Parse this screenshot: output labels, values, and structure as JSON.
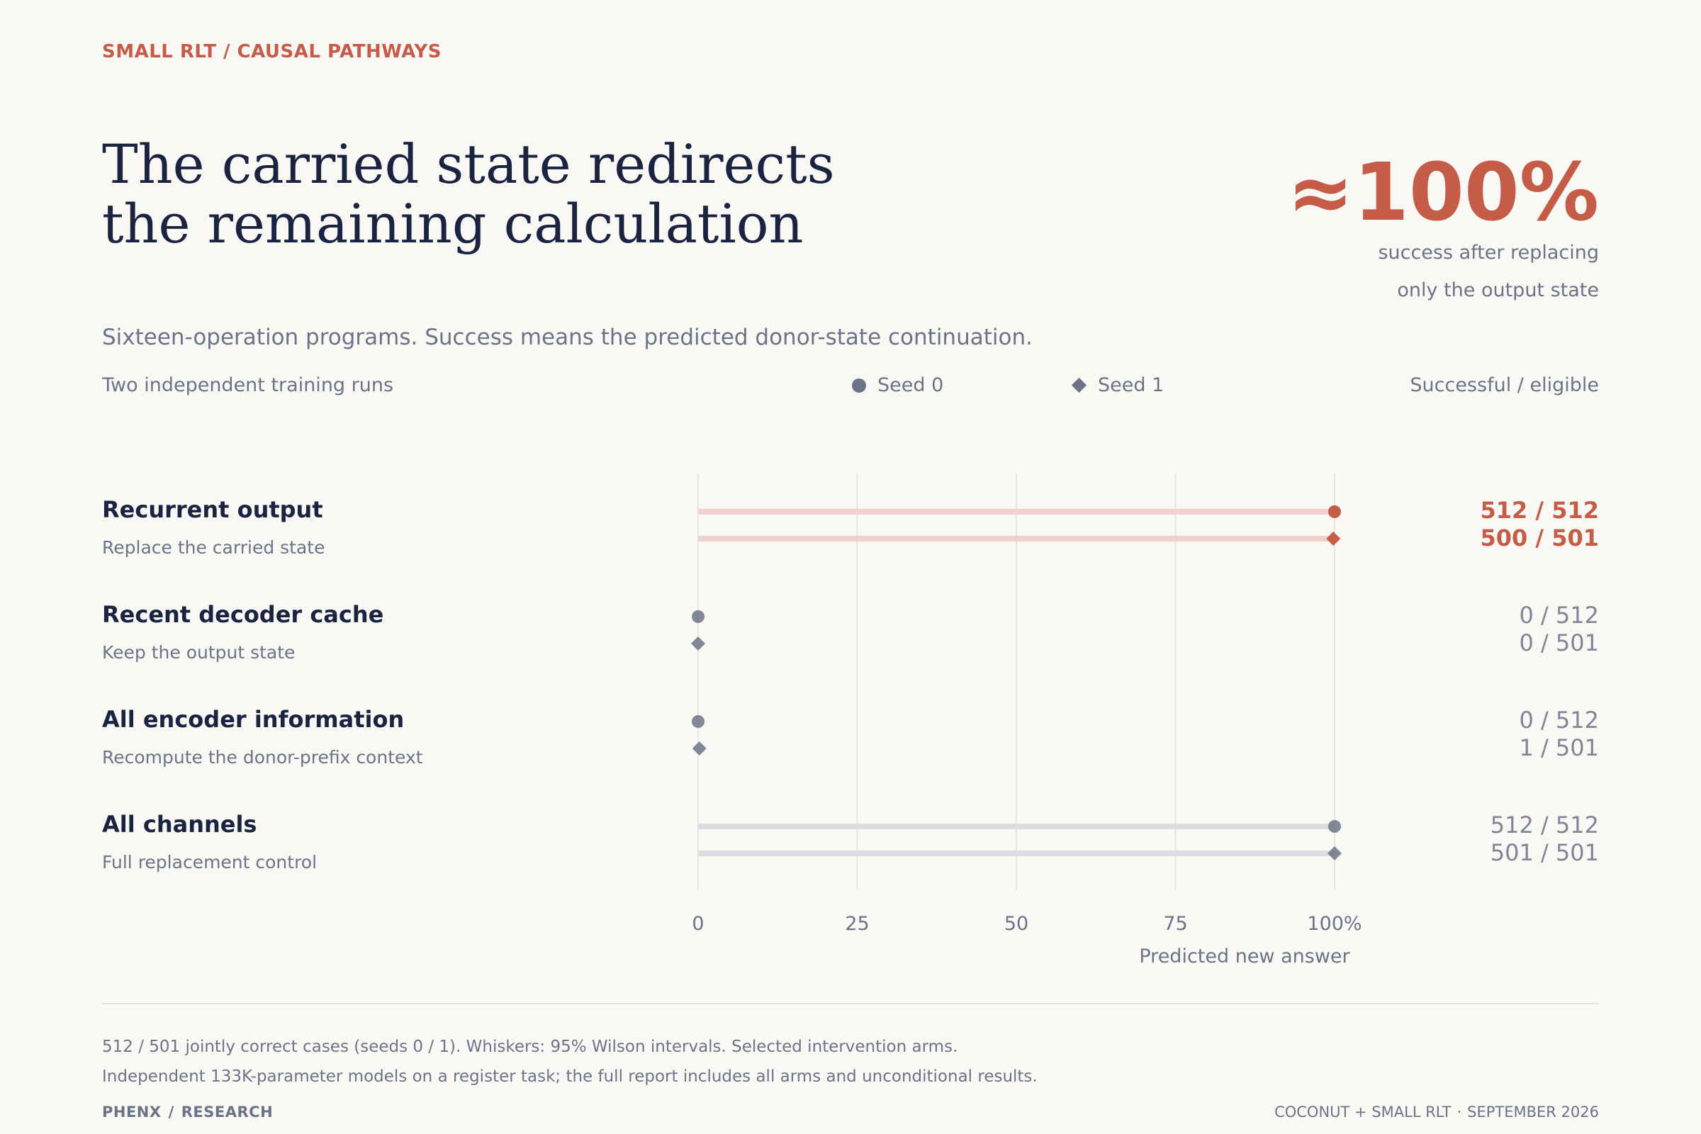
{
  "header": {
    "kicker": "SMALL RLT / CAUSAL PATHWAYS",
    "title_line1": "The carried state redirects",
    "title_line2": "the remaining calculation"
  },
  "headline_stat": {
    "value": "≈100%",
    "caption_line1": "success after replacing",
    "caption_line2": "only the output state"
  },
  "subtitle": "Sixteen-operation programs. Success means the predicted donor-state continuation.",
  "legend": {
    "runs_label": "Two independent training runs",
    "seed0": "Seed 0",
    "seed1": "Seed 1",
    "ratio_header": "Successful / eligible"
  },
  "colors": {
    "accent": "#c45c47",
    "accent_light": "#eed3cc",
    "neutral_marker": "#6b7486",
    "neutral_bar": "#dcdde0",
    "grid": "#e3e4e8",
    "text_dark": "#1a2340",
    "text_muted": "#6b7486"
  },
  "chart_data": {
    "type": "dot",
    "xlabel": "Predicted new answer",
    "xlim": [
      0,
      100
    ],
    "ticks": [
      "0",
      "25",
      "50",
      "75",
      "100%"
    ],
    "tick_values": [
      0,
      25,
      50,
      75,
      100
    ],
    "series": [
      {
        "name": "Seed 0",
        "marker": "circle"
      },
      {
        "name": "Seed 1",
        "marker": "diamond"
      }
    ],
    "rows": [
      {
        "name": "Recurrent output",
        "description": "Replace the carried state",
        "highlight": true,
        "values": [
          100,
          99.8
        ],
        "ratios": [
          "512 / 512",
          "500 / 501"
        ]
      },
      {
        "name": "Recent decoder cache",
        "description": "Keep the output state",
        "highlight": false,
        "values": [
          0,
          0
        ],
        "ratios": [
          "0 / 512",
          "0 / 501"
        ]
      },
      {
        "name": "All encoder information",
        "description": "Recompute the donor-prefix context",
        "highlight": false,
        "values": [
          0,
          0.2
        ],
        "ratios": [
          "0 / 512",
          "1 / 501"
        ]
      },
      {
        "name": "All channels",
        "description": "Full replacement control",
        "highlight": false,
        "values": [
          100,
          100
        ],
        "ratios": [
          "512 / 512",
          "501 / 501"
        ]
      }
    ]
  },
  "footnotes": {
    "line1": "512 / 501 jointly correct cases (seeds 0 / 1). Whiskers: 95% Wilson intervals. Selected intervention arms.",
    "line2": "Independent 133K-parameter models on a register task; the full report includes all arms and unconditional results."
  },
  "footer": {
    "brand_left": "PHENX",
    "brand_sep": "/",
    "brand_right": "RESEARCH",
    "edition_left": "COCONUT + SMALL RLT",
    "edition_sep": "·",
    "edition_right": "SEPTEMBER 2026"
  }
}
